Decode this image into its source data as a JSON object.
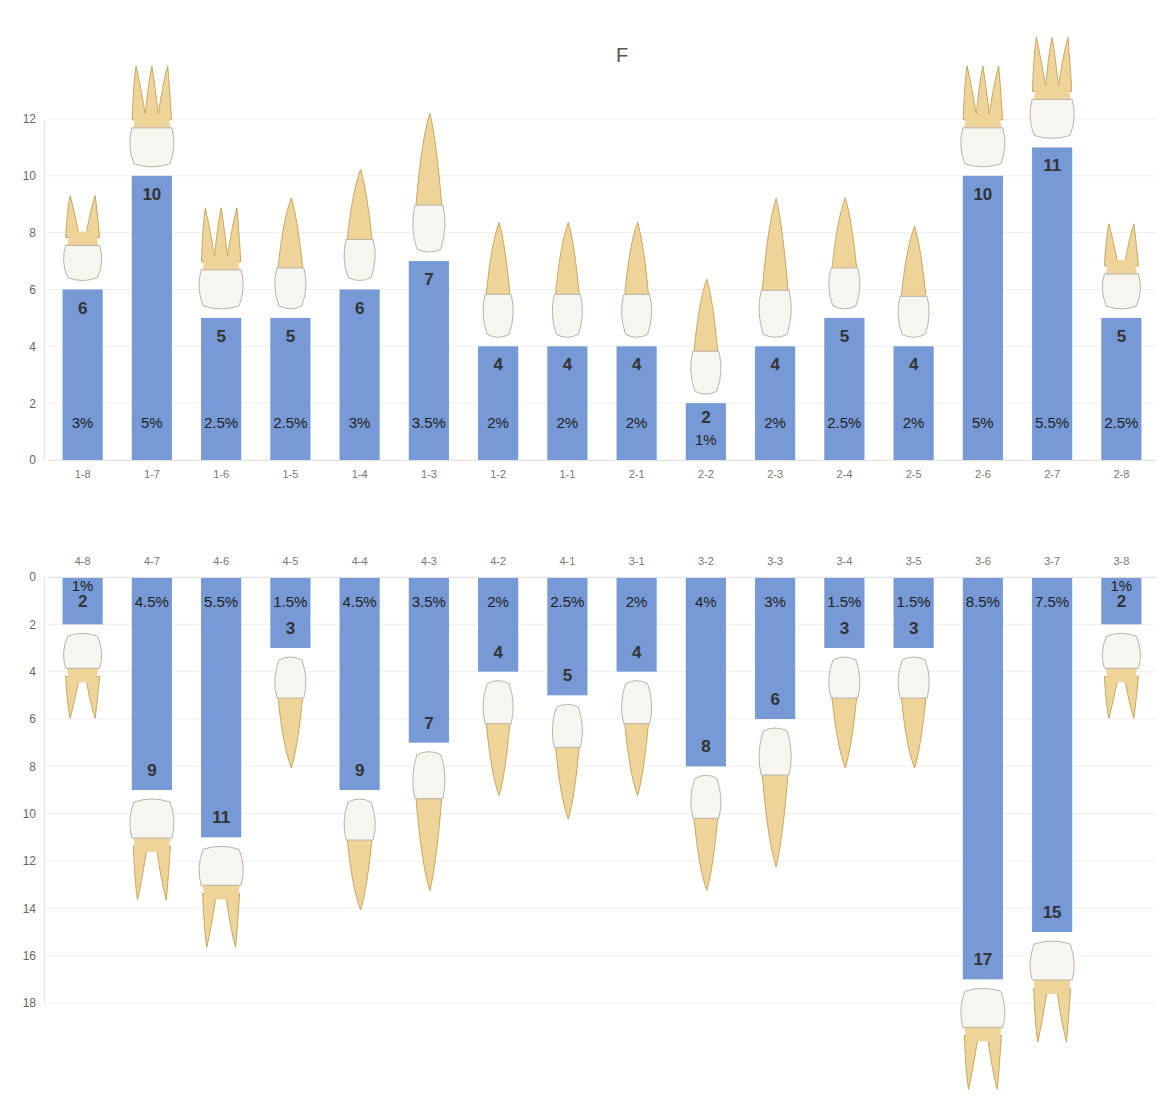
{
  "chart_data": [
    {
      "type": "bar",
      "title": "F",
      "categories": [
        "1-8",
        "1-7",
        "1-6",
        "1-5",
        "1-4",
        "1-3",
        "1-2",
        "1-1",
        "2-1",
        "2-2",
        "2-3",
        "2-4",
        "2-5",
        "2-6",
        "2-7",
        "2-8"
      ],
      "values": [
        6,
        10,
        5,
        5,
        6,
        7,
        4,
        4,
        4,
        2,
        4,
        5,
        4,
        10,
        11,
        5
      ],
      "percentages": [
        "3%",
        "5%",
        "2.5%",
        "2.5%",
        "3%",
        "3.5%",
        "2%",
        "2%",
        "2%",
        "1%",
        "2%",
        "2.5%",
        "2%",
        "5%",
        "5.5%",
        "2.5%"
      ],
      "color": "#7799d6",
      "ylim": [
        0,
        12
      ],
      "yticks": [
        0,
        2,
        4,
        6,
        8,
        10,
        12
      ],
      "grid": true,
      "data_labels": true
    },
    {
      "type": "bar",
      "categories": [
        "4-8",
        "4-7",
        "4-6",
        "4-5",
        "4-4",
        "4-3",
        "4-2",
        "4-1",
        "3-1",
        "3-2",
        "3-3",
        "3-4",
        "3-5",
        "3-6",
        "3-7",
        "3-8"
      ],
      "values": [
        2,
        9,
        11,
        3,
        9,
        7,
        4,
        5,
        4,
        8,
        6,
        3,
        3,
        17,
        15,
        2
      ],
      "percentages": [
        "1%",
        "4.5%",
        "5.5%",
        "1.5%",
        "4.5%",
        "3.5%",
        "2%",
        "2.5%",
        "2%",
        "4%",
        "3%",
        "1.5%",
        "1.5%",
        "8.5%",
        "7.5%",
        "1%"
      ],
      "color": "#7799d6",
      "ylim": [
        0,
        18
      ],
      "yticks": [
        0,
        2,
        4,
        6,
        8,
        10,
        12,
        14,
        16,
        18
      ],
      "grid": true,
      "data_labels": true
    }
  ]
}
